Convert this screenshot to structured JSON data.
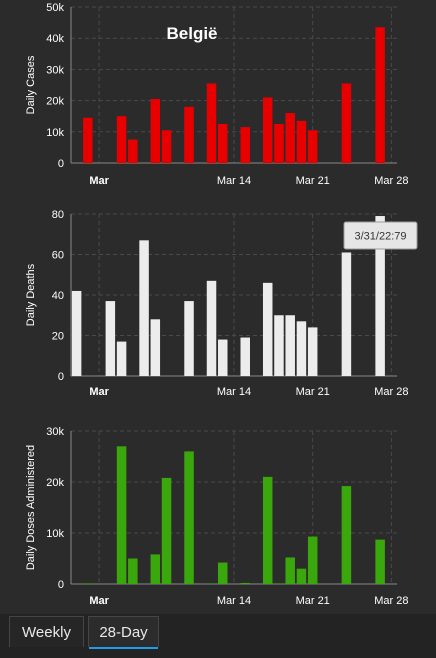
{
  "tabs": [
    {
      "label": "Weekly",
      "active": false
    },
    {
      "label": "28-Day",
      "active": true
    }
  ],
  "tooltip": {
    "text": "3/31/22:79"
  },
  "chart_data": [
    {
      "type": "bar",
      "title": "België",
      "ylabel": "Daily Cases",
      "color": "#e80000",
      "ylim": [
        0,
        50000
      ],
      "yticks": [
        0,
        10000,
        20000,
        30000,
        40000,
        50000
      ],
      "yticklabels": [
        "0",
        "10k",
        "20k",
        "30k",
        "40k",
        "50k"
      ],
      "xticks": [
        {
          "day": 2,
          "label": "Mar",
          "bold": true
        },
        {
          "day": 14,
          "label": "Mar 14"
        },
        {
          "day": 21,
          "label": "Mar 21"
        },
        {
          "day": 28,
          "label": "Mar 28"
        }
      ],
      "x": [
        1,
        4,
        5,
        7,
        8,
        10,
        12,
        13,
        15,
        17,
        18,
        19,
        20,
        21,
        24,
        27
      ],
      "values": [
        14500,
        15000,
        7500,
        20500,
        10500,
        18000,
        25500,
        12500,
        11500,
        21000,
        12500,
        16000,
        13500,
        10500,
        25500,
        43500
      ]
    },
    {
      "type": "bar",
      "ylabel": "Daily Deaths",
      "color": "#ececec",
      "ylim": [
        0,
        80
      ],
      "yticks": [
        0,
        20,
        40,
        60,
        80
      ],
      "yticklabels": [
        "0",
        "20",
        "40",
        "60",
        "80"
      ],
      "xticks": [
        {
          "day": 2,
          "label": "Mar",
          "bold": true
        },
        {
          "day": 14,
          "label": "Mar 14"
        },
        {
          "day": 21,
          "label": "Mar 21"
        },
        {
          "day": 28,
          "label": "Mar 28"
        }
      ],
      "x": [
        0,
        3,
        4,
        6,
        7,
        10,
        12,
        13,
        15,
        17,
        18,
        19,
        20,
        21,
        24,
        27
      ],
      "values": [
        42,
        37,
        17,
        67,
        28,
        37,
        47,
        18,
        19,
        46,
        30,
        30,
        27,
        24,
        61,
        79
      ]
    },
    {
      "type": "bar",
      "ylabel": "Daily Doses Administered",
      "color": "#3aa80c",
      "ylim": [
        0,
        30000
      ],
      "yticks": [
        0,
        10000,
        20000,
        30000
      ],
      "yticklabels": [
        "0",
        "10k",
        "20k",
        "30k"
      ],
      "xticks": [
        {
          "day": 2,
          "label": "Mar",
          "bold": true
        },
        {
          "day": 14,
          "label": "Mar 14"
        },
        {
          "day": 21,
          "label": "Mar 21"
        },
        {
          "day": 28,
          "label": "Mar 28"
        }
      ],
      "x": [
        1,
        4,
        5,
        7,
        8,
        10,
        12,
        13,
        15,
        17,
        18,
        19,
        20,
        21,
        24,
        27
      ],
      "values": [
        0,
        27000,
        5000,
        5800,
        20800,
        26000,
        0,
        4200,
        200,
        21000,
        0,
        5200,
        3000,
        9300,
        19200,
        8700
      ]
    }
  ]
}
